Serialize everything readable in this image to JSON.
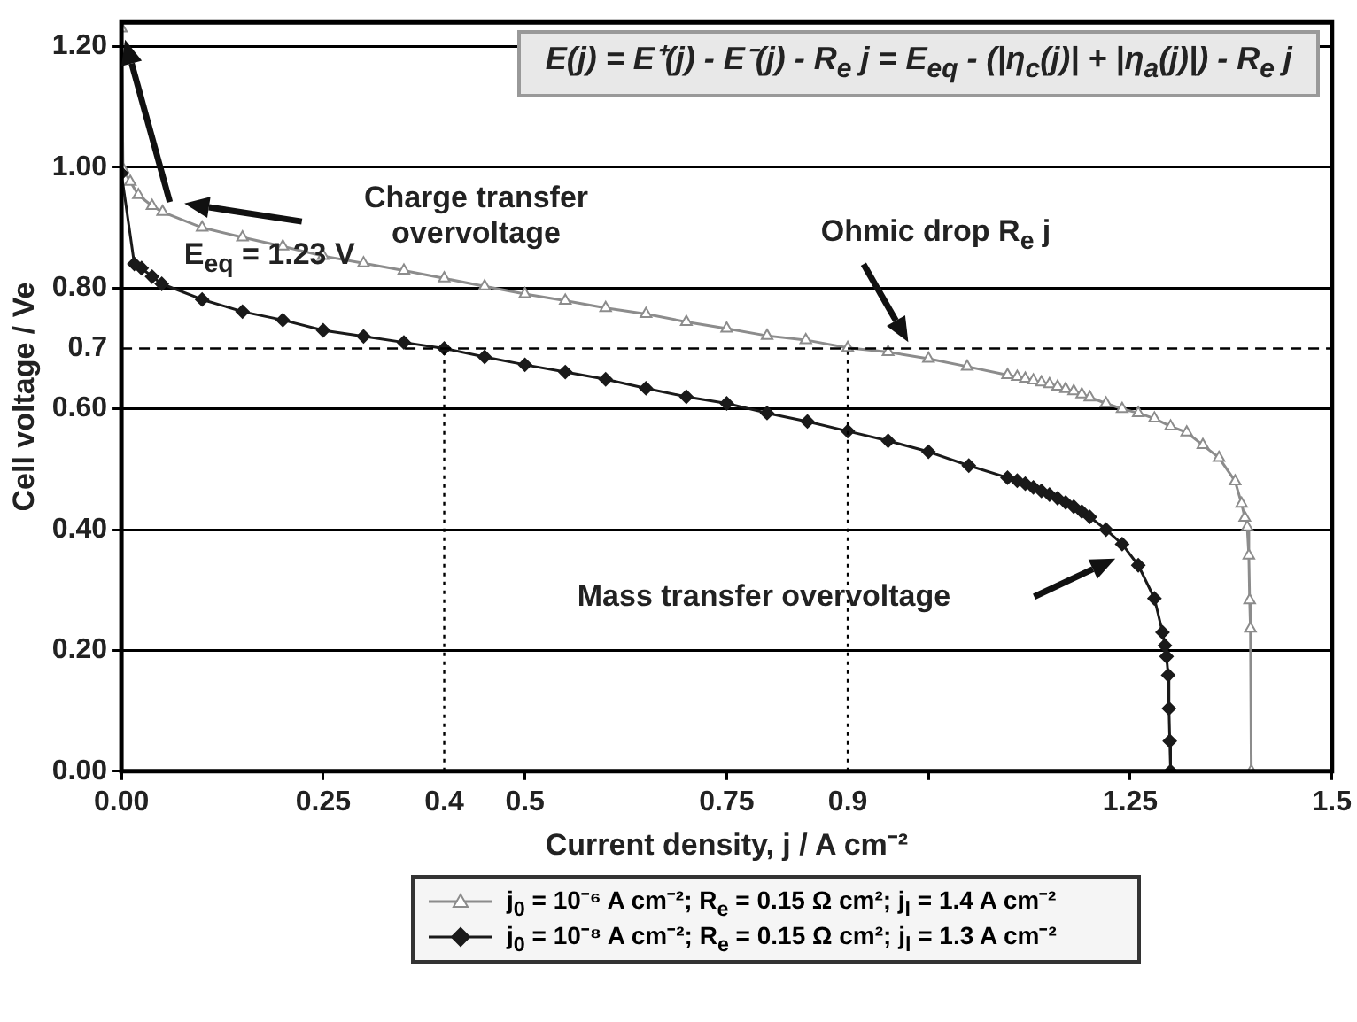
{
  "chart_data": {
    "type": "line",
    "xlabel": "Current density, j / A cm⁻²",
    "ylabel": "Cell voltage / Ve",
    "xlim": [
      0,
      1.5
    ],
    "ylim": [
      0,
      1.24
    ],
    "xticks": [
      {
        "value": 0,
        "label": "0.00"
      },
      0.25,
      0.4,
      0.5,
      0.75,
      0.9,
      {
        "value": 1,
        "label": null
      },
      1.25,
      1.5
    ],
    "yticks": [
      {
        "value": 0,
        "label": "0.00"
      },
      {
        "value": 0.2,
        "label": "0.20"
      },
      {
        "value": 0.4,
        "label": "0.40"
      },
      {
        "value": 0.6,
        "label": "0.60"
      },
      0.7,
      {
        "value": 0.8,
        "label": "0.80"
      },
      {
        "value": 1,
        "label": "1.00"
      },
      {
        "value": 1.2,
        "label": "1.20"
      }
    ],
    "grid": "y",
    "legend": "bottom",
    "line_style": "solid",
    "ref_lines": [
      {
        "axis": "y",
        "value": 0.7,
        "line_style": "dashed",
        "color": "#000000"
      },
      {
        "axis": "x",
        "value": 0.4,
        "line_style": "dotted",
        "color": "#000000"
      },
      {
        "axis": "x",
        "value": 0.9,
        "line_style": "dotted",
        "color": "#000000"
      }
    ],
    "annotations": [
      "E(j) = E⁺(j) - E⁻(j) - R$_{e}$ j = E$_{eq}$ - (|η$_{c}$(j)| + |η$_{a}$(j)|) - R$_{e}$ j",
      "E$_{eq}$ = 1.23 V",
      "Charge transfer overvoltage",
      "Ohmic drop R$_{e}$ j",
      "Mass transfer overvoltage"
    ],
    "series": [
      {
        "name": "j$_{0}$ = 10⁻⁶ A cm⁻²; R$_{e}$ = 0.15 Ω cm²; j$_{l}$ = 1.4 A cm⁻²",
        "color": "#8c8c8c",
        "marker": "triangle",
        "x": [
          0,
          0.002,
          0.011,
          0.021,
          0.038,
          0.051,
          0.1,
          0.15,
          0.2,
          0.25,
          0.3,
          0.35,
          0.4,
          0.45,
          0.5,
          0.55,
          0.6,
          0.65,
          0.7,
          0.75,
          0.8,
          0.848,
          0.9,
          0.95,
          1.0,
          1.048,
          1.098,
          1.11,
          1.12,
          1.13,
          1.14,
          1.15,
          1.16,
          1.17,
          1.18,
          1.19,
          1.2,
          1.22,
          1.24,
          1.26,
          1.28,
          1.3,
          1.32,
          1.34,
          1.36,
          1.38,
          1.388,
          1.392,
          1.395,
          1.397,
          1.398,
          1.399,
          1.4
        ],
        "values": [
          1.23,
          0.997,
          0.976,
          0.954,
          0.936,
          0.926,
          0.9,
          0.884,
          0.869,
          0.853,
          0.841,
          0.829,
          0.816,
          0.803,
          0.79,
          0.779,
          0.767,
          0.757,
          0.744,
          0.733,
          0.721,
          0.714,
          0.701,
          0.694,
          0.683,
          0.67,
          0.656,
          0.653,
          0.65,
          0.647,
          0.644,
          0.641,
          0.637,
          0.633,
          0.629,
          0.624,
          0.619,
          0.609,
          0.6,
          0.593,
          0.584,
          0.571,
          0.561,
          0.54,
          0.519,
          0.48,
          0.443,
          0.42,
          0.404,
          0.357,
          0.283,
          0.236,
          0
        ]
      },
      {
        "name": "j$_{0}$ = 10⁻⁸ A cm⁻²; R$_{e}$ = 0.15 Ω cm²; j$_{l}$ = 1.3 A cm⁻²",
        "color": "#1a1a1a",
        "marker": "diamond",
        "x": [
          0,
          0.016,
          0.025,
          0.038,
          0.05,
          0.1,
          0.15,
          0.2,
          0.25,
          0.3,
          0.35,
          0.4,
          0.45,
          0.5,
          0.55,
          0.6,
          0.65,
          0.7,
          0.75,
          0.8,
          0.85,
          0.9,
          0.95,
          1.0,
          1.05,
          1.098,
          1.11,
          1.12,
          1.13,
          1.14,
          1.15,
          1.16,
          1.17,
          1.18,
          1.19,
          1.2,
          1.22,
          1.24,
          1.26,
          1.28,
          1.29,
          1.293,
          1.295,
          1.297,
          1.298,
          1.299,
          1.3
        ],
        "values": [
          0.99,
          0.84,
          0.833,
          0.819,
          0.807,
          0.781,
          0.761,
          0.747,
          0.73,
          0.72,
          0.71,
          0.7,
          0.686,
          0.673,
          0.661,
          0.649,
          0.634,
          0.62,
          0.609,
          0.593,
          0.579,
          0.563,
          0.547,
          0.529,
          0.506,
          0.486,
          0.481,
          0.476,
          0.47,
          0.464,
          0.458,
          0.452,
          0.445,
          0.438,
          0.43,
          0.421,
          0.4,
          0.376,
          0.341,
          0.286,
          0.23,
          0.208,
          0.19,
          0.159,
          0.104,
          0.05,
          0
        ]
      }
    ]
  }
}
